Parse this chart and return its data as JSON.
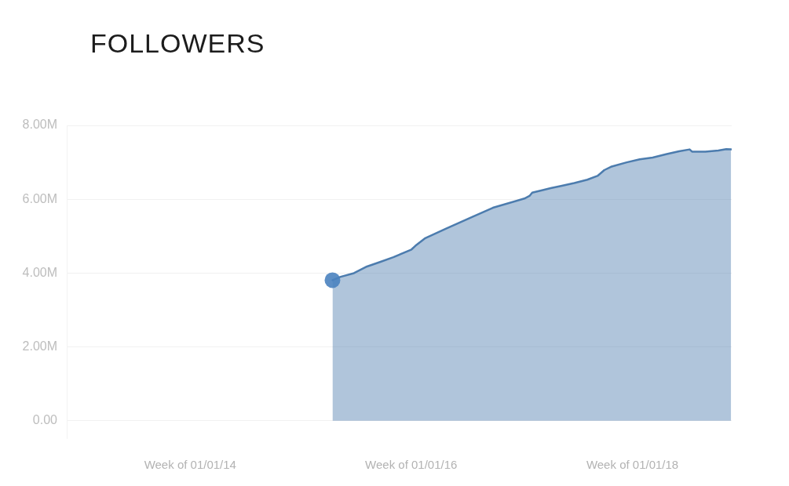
{
  "chart_data": {
    "type": "area",
    "title": "FOLLOWERS",
    "x": [
      "2015-04-16",
      "2015-05-13",
      "2015-06-26",
      "2015-08-08",
      "2015-09-20",
      "2015-11-03",
      "2016-01-02",
      "2016-01-15",
      "2016-02-15",
      "2016-04-24",
      "2016-07-20",
      "2016-09-27",
      "2017-01-09",
      "2017-01-26",
      "2017-02-04",
      "2017-03-11",
      "2017-04-06",
      "2017-05-10",
      "2017-06-23",
      "2017-08-05",
      "2017-09-09",
      "2017-09-30",
      "2017-10-22",
      "2017-12-13",
      "2018-01-25",
      "2018-03-09",
      "2018-04-22",
      "2018-06-04",
      "2018-07-09",
      "2018-07-17",
      "2018-08-30",
      "2018-10-12",
      "2018-11-07",
      "2018-11-23"
    ],
    "series": [
      {
        "color": "#4c7cae",
        "values": [
          3.81,
          3.9,
          4.0,
          4.18,
          4.3,
          4.43,
          4.64,
          4.74,
          4.94,
          5.2,
          5.52,
          5.77,
          6.02,
          6.09,
          6.18,
          6.25,
          6.3,
          6.36,
          6.44,
          6.53,
          6.64,
          6.79,
          6.88,
          7.0,
          7.08,
          7.13,
          7.22,
          7.3,
          7.35,
          7.29,
          7.29,
          7.32,
          7.36,
          7.35
        ]
      },
      {
        "type": "scatter",
        "color": "#4a82bf",
        "marker": "circle",
        "x": [
          "2015-04-16"
        ],
        "values": [
          3.81
        ]
      }
    ],
    "xlim": [
      "2012-11-19",
      "2018-11-25"
    ],
    "xticks": [
      {
        "value": "2014-01-01",
        "label": "Week of 01/01/14"
      },
      {
        "value": "2016-01-01",
        "label": "Week of 01/01/16"
      },
      {
        "value": "2018-01-01",
        "label": "Week of 01/01/18"
      }
    ],
    "ylim": [
      -0.47,
      8
    ],
    "yticks": [
      {
        "value": 0,
        "label": "0.00"
      },
      {
        "value": 2,
        "label": "2.00M"
      },
      {
        "value": 4,
        "label": "4.00M"
      },
      {
        "value": 6,
        "label": "6.00M"
      },
      {
        "value": 8,
        "label": "8.00M"
      }
    ],
    "grid": "y"
  }
}
